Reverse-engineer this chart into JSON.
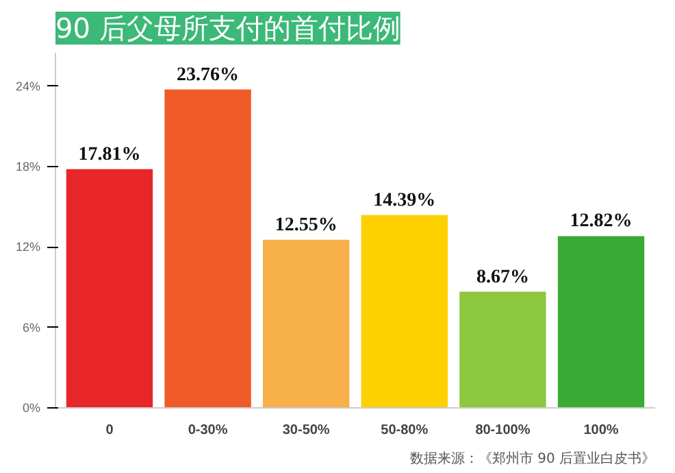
{
  "chart_data": {
    "type": "bar",
    "title": "90 后父母所支付的首付比例",
    "categories": [
      "0",
      "0-30%",
      "30-50%",
      "50-80%",
      "80-100%",
      "100%"
    ],
    "values": [
      17.81,
      23.76,
      12.55,
      14.39,
      8.67,
      12.82
    ],
    "colors": [
      "#e8262a",
      "#f05a28",
      "#f7b04a",
      "#fdd000",
      "#8dc63f",
      "#3aaa35"
    ],
    "value_labels": [
      "17.81%",
      "23.76%",
      "12.55%",
      "14.39%",
      "8.67%",
      "12.82%"
    ],
    "ylim": [
      0,
      26.5
    ],
    "yticks": [
      {
        "value": 0,
        "label": "0%"
      },
      {
        "value": 6,
        "label": "6%"
      },
      {
        "value": 12,
        "label": "12%"
      },
      {
        "value": 18,
        "label": "18%"
      },
      {
        "value": 24,
        "label": "24%"
      }
    ],
    "annotations": [
      "数据来源：《郑州市 90 后置业白皮书》"
    ],
    "grid": false
  }
}
